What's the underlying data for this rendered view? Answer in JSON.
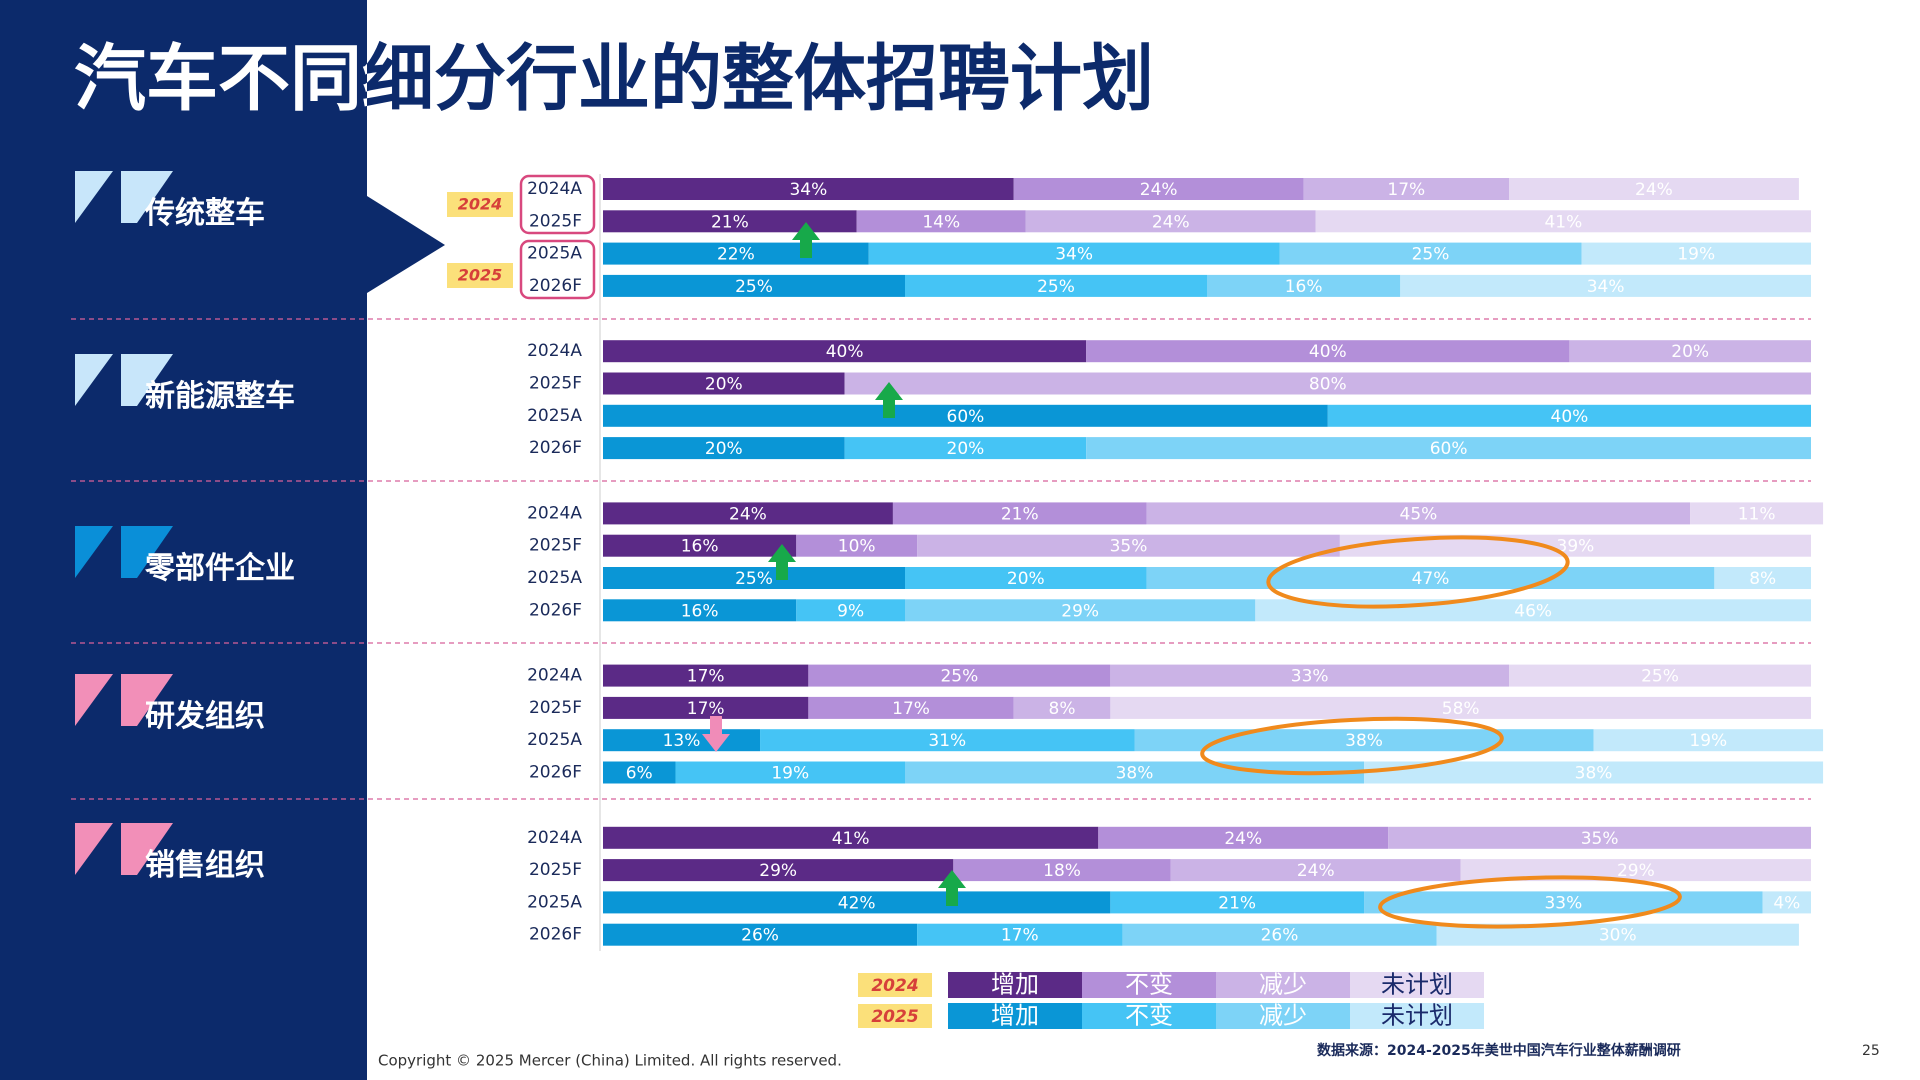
{
  "header": {
    "title": "汽车不同细分行业的整体招聘计划"
  },
  "chart_data": {
    "type": "stacked-bar",
    "period_tags": [
      "2024",
      "2025"
    ],
    "legend": [
      {
        "label": "2024",
        "names": [
          "增加",
          "不变",
          "减少",
          "未计划"
        ],
        "colors": [
          "#5b2a86",
          "#b38fd9",
          "#cbb3e6",
          "#e5d9f2"
        ]
      },
      {
        "label": "2025",
        "names": [
          "增加",
          "不变",
          "减少",
          "未计划"
        ],
        "colors": [
          "#0a96d6",
          "#45c4f5",
          "#7dd3f7",
          "#c2e9fb"
        ]
      }
    ],
    "xlim": [
      0,
      100
    ],
    "groups": [
      {
        "name": "传统整车",
        "rows": [
          {
            "label": "2024A",
            "values": [
              34,
              24,
              17,
              24
            ],
            "value_labels": [
              "34%",
              "24%",
              "17%",
              "24%"
            ]
          },
          {
            "label": "2025F",
            "values": [
              21,
              14,
              24,
              41
            ],
            "value_labels": [
              "21%",
              "14%",
              "24%",
              "41%"
            ]
          },
          {
            "label": "2025A",
            "values": [
              22,
              34,
              25,
              19
            ],
            "value_labels": [
              "22%",
              "34%",
              "25%",
              "19%"
            ]
          },
          {
            "label": "2026F",
            "values": [
              25,
              25,
              16,
              34
            ],
            "value_labels": [
              "25%",
              "25%",
              "16%",
              "34%"
            ]
          }
        ]
      },
      {
        "name": "新能源整车",
        "rows": [
          {
            "label": "2024A",
            "values": [
              40,
              40,
              20,
              null
            ],
            "value_labels": [
              "40%",
              "40%",
              "20%",
              null
            ]
          },
          {
            "label": "2025F",
            "values": [
              20,
              null,
              80,
              null
            ],
            "value_labels": [
              "20%",
              null,
              "80%",
              null
            ]
          },
          {
            "label": "2025A",
            "values": [
              60,
              40,
              null,
              null
            ],
            "value_labels": [
              "60%",
              "40%",
              null,
              null
            ]
          },
          {
            "label": "2026F",
            "values": [
              20,
              20,
              60,
              null
            ],
            "value_labels": [
              "20%",
              "20%",
              "60%",
              null
            ]
          }
        ]
      },
      {
        "name": "零部件企业",
        "rows": [
          {
            "label": "2024A",
            "values": [
              24,
              21,
              45,
              11
            ],
            "value_labels": [
              "24%",
              "21%",
              "45%",
              "11%"
            ]
          },
          {
            "label": "2025F",
            "values": [
              16,
              10,
              35,
              39
            ],
            "value_labels": [
              "16%",
              "10%",
              "35%",
              "39%"
            ]
          },
          {
            "label": "2025A",
            "values": [
              25,
              20,
              47,
              8
            ],
            "value_labels": [
              "25%",
              "20%",
              "47%",
              "8%"
            ]
          },
          {
            "label": "2026F",
            "values": [
              16,
              9,
              29,
              46
            ],
            "value_labels": [
              "16%",
              "9%",
              "29%",
              "46%"
            ]
          }
        ]
      },
      {
        "name": "研发组织",
        "rows": [
          {
            "label": "2024A",
            "values": [
              17,
              25,
              33,
              25
            ],
            "value_labels": [
              "17%",
              "25%",
              "33%",
              "25%"
            ]
          },
          {
            "label": "2025F",
            "values": [
              17,
              17,
              8,
              58
            ],
            "value_labels": [
              "17%",
              "17%",
              "8%",
              "58%"
            ]
          },
          {
            "label": "2025A",
            "values": [
              13,
              31,
              38,
              19
            ],
            "value_labels": [
              "13%",
              "31%",
              "38%",
              "19%"
            ]
          },
          {
            "label": "2026F",
            "values": [
              6,
              19,
              38,
              38
            ],
            "value_labels": [
              "6%",
              "19%",
              "38%",
              "38%"
            ]
          }
        ]
      },
      {
        "name": "销售组织",
        "rows": [
          {
            "label": "2024A",
            "values": [
              41,
              24,
              35,
              null
            ],
            "value_labels": [
              "41%",
              "24%",
              "35%",
              null
            ]
          },
          {
            "label": "2025F",
            "values": [
              29,
              18,
              24,
              29
            ],
            "value_labels": [
              "29%",
              "18%",
              "24%",
              "29%"
            ]
          },
          {
            "label": "2025A",
            "values": [
              42,
              21,
              33,
              4
            ],
            "value_labels": [
              "42%",
              "21%",
              "33%",
              "4%"
            ]
          },
          {
            "label": "2026F",
            "values": [
              26,
              17,
              26,
              30
            ],
            "value_labels": [
              "26%",
              "17%",
              "26%",
              "30%"
            ]
          }
        ]
      }
    ]
  },
  "footer": {
    "copyright": "Copyright © 2025 Mercer (China) Limited. All rights reserved.",
    "source": "数据来源：2024-2025年美世中国汽车行业整体薪酬调研",
    "page": "25"
  }
}
